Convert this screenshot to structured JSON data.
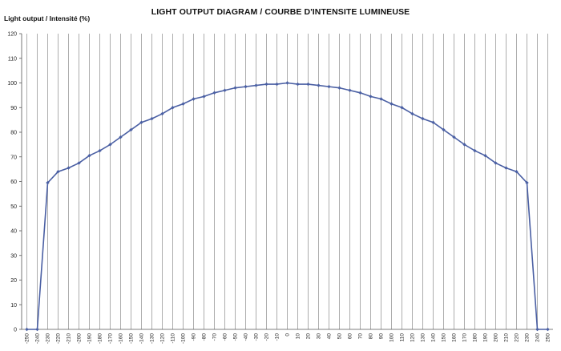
{
  "chart_data": {
    "type": "line",
    "title": "LIGHT OUTPUT DIAGRAM / COURBE D'INTENSITE LUMINEUSE",
    "ylabel": "Light output / Intensité (%)",
    "xlabel": "",
    "ylim": [
      0,
      120
    ],
    "yticks": [
      0,
      10,
      20,
      30,
      40,
      50,
      60,
      70,
      80,
      90,
      100,
      110,
      120
    ],
    "grid": "vertical lines at each x category",
    "legend": "none",
    "series_color": "#4a5fa3",
    "x": [
      -250,
      -240,
      -230,
      -220,
      -210,
      -200,
      -190,
      -180,
      -170,
      -160,
      -150,
      -140,
      -130,
      -120,
      -110,
      -100,
      -90,
      -80,
      -70,
      -60,
      -50,
      -40,
      -30,
      -20,
      -10,
      0,
      10,
      20,
      30,
      40,
      50,
      60,
      70,
      80,
      90,
      100,
      110,
      120,
      130,
      140,
      150,
      160,
      170,
      180,
      190,
      200,
      210,
      220,
      230,
      240,
      250
    ],
    "series": [
      {
        "values": [
          0,
          0,
          59.5,
          64,
          65.5,
          67.5,
          70.5,
          72.5,
          75,
          78,
          81,
          84,
          85.5,
          87.5,
          90,
          91.5,
          93.5,
          94.5,
          96,
          97,
          98,
          98.5,
          99,
          99.5,
          99.5,
          100,
          99.5,
          99.5,
          99,
          98.5,
          98,
          97,
          96,
          94.5,
          93.5,
          91.5,
          90,
          87.5,
          85.5,
          84,
          81,
          78,
          75,
          72.5,
          70.5,
          67.5,
          65.5,
          64,
          59.5,
          0,
          0
        ]
      }
    ]
  }
}
